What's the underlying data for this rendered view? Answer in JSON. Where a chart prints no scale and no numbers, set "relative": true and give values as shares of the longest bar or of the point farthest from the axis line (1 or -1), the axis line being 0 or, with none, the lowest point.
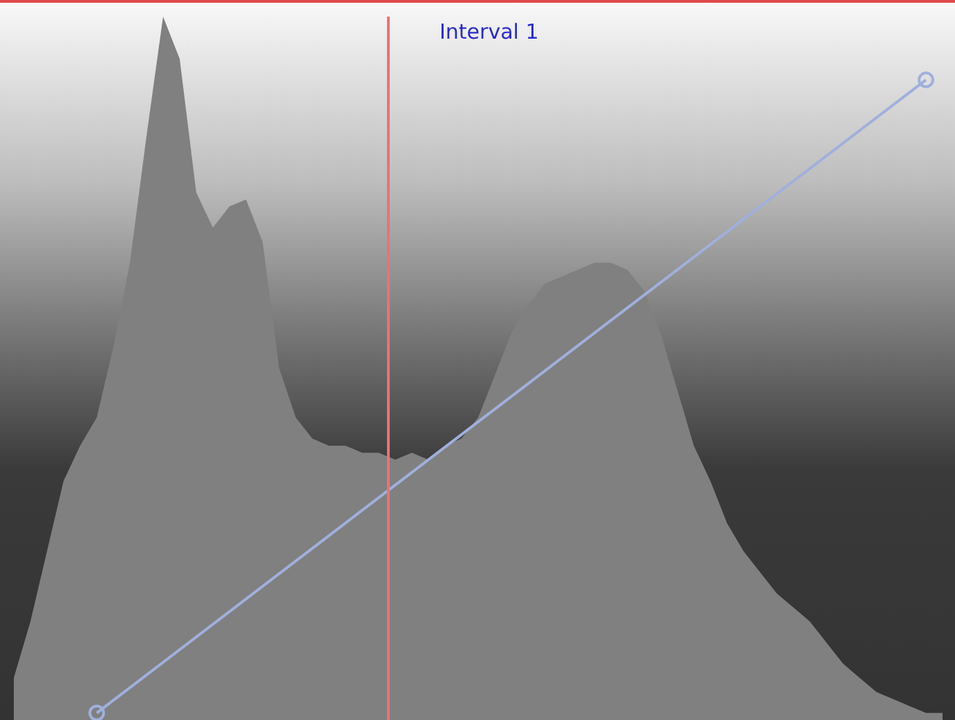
{
  "chart_data": {
    "type": "area",
    "relative": true,
    "categories": [
      null,
      null,
      null,
      null,
      null,
      null,
      null,
      null,
      null,
      null,
      null,
      null,
      null,
      null,
      null,
      null,
      null,
      null,
      null,
      null,
      null,
      null,
      null,
      null,
      null,
      null,
      null,
      null,
      null,
      null,
      null,
      null,
      null,
      null,
      null,
      null,
      null,
      null,
      null,
      null,
      null,
      null,
      null,
      null,
      null,
      null,
      null,
      null,
      null,
      null,
      null,
      null,
      null,
      null,
      null,
      null,
      null
    ],
    "series": [
      {
        "color": "#808080",
        "values": [
          0.06,
          0.14,
          0.24,
          0.34,
          0.39,
          0.43,
          0.53,
          0.65,
          0.83,
          1,
          0.94,
          0.75,
          0.7,
          0.73,
          0.74,
          0.68,
          0.5,
          0.43,
          0.4,
          0.39,
          0.39,
          0.38,
          0.38,
          0.37,
          0.38,
          0.37,
          0.39,
          0.4,
          0.43,
          0.49,
          0.55,
          0.59,
          0.62,
          0.63,
          0.64,
          0.65,
          0.65,
          0.64,
          0.61,
          0.55,
          0.47,
          0.39,
          0.34,
          0.28,
          0.24,
          0.21,
          0.18,
          0.16,
          0.14,
          0.11,
          0.08,
          0.06,
          0.04,
          0.03,
          0.02,
          0.01,
          0.01
        ]
      },
      {
        "type": "line",
        "color": "#9fb0dc",
        "marker": "circle",
        "values": [
          null,
          null,
          null,
          null,
          null,
          0.01,
          null,
          null,
          null,
          null,
          null,
          null,
          null,
          null,
          null,
          null,
          null,
          null,
          null,
          null,
          null,
          null,
          null,
          null,
          null,
          null,
          null,
          null,
          null,
          null,
          null,
          null,
          null,
          null,
          null,
          null,
          null,
          null,
          null,
          null,
          null,
          null,
          null,
          null,
          null,
          null,
          null,
          null,
          null,
          null,
          null,
          null,
          null,
          null,
          null,
          0.91,
          null
        ]
      }
    ],
    "annotations": [
      "Interval 1"
    ]
  }
}
